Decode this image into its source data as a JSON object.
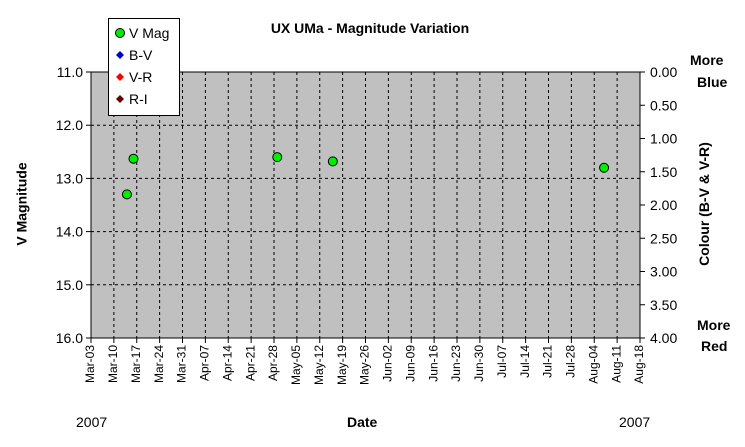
{
  "chart_data": {
    "type": "scatter",
    "title": "UX UMa - Magnitude Variation",
    "xlabel": "Date",
    "ylabel": "V Magnitude",
    "y2label": "Colour (B-V & V-R)",
    "x_start_year_label": "2007",
    "x_end_year_label": "2007",
    "categories": [
      "Mar-03",
      "Mar-10",
      "Mar-17",
      "Mar-24",
      "Mar-31",
      "Apr-07",
      "Apr-14",
      "Apr-21",
      "Apr-28",
      "May-05",
      "May-12",
      "May-19",
      "May-26",
      "Jun-02",
      "Jun-09",
      "Jun-16",
      "Jun-23",
      "Jun-30",
      "Jul-07",
      "Jul-14",
      "Jul-21",
      "Jul-28",
      "Aug-04",
      "Aug-11",
      "Aug-18"
    ],
    "ylim": [
      16.0,
      11.0
    ],
    "y_ticks": [
      "11.0",
      "12.0",
      "13.0",
      "14.0",
      "15.0",
      "16.0"
    ],
    "y2lim": [
      4.0,
      0.0
    ],
    "y2_ticks": [
      "0.00",
      "0.50",
      "1.00",
      "1.50",
      "2.00",
      "2.50",
      "3.00",
      "3.50",
      "4.00"
    ],
    "y2_top_label": [
      "More",
      "Blue"
    ],
    "y2_bottom_label": [
      "More",
      "Red"
    ],
    "grid": true,
    "legend_position": "top-left",
    "series": [
      {
        "name": "V Mag",
        "marker": "circle",
        "color": "#00ee00",
        "points": [
          {
            "x": "2007-03-14",
            "y": 13.3
          },
          {
            "x": "2007-03-16",
            "y": 12.63
          },
          {
            "x": "2007-04-29",
            "y": 12.6
          },
          {
            "x": "2007-05-16",
            "y": 12.68
          },
          {
            "x": "2007-08-07",
            "y": 12.8
          }
        ]
      },
      {
        "name": "B-V",
        "marker": "diamond",
        "color": "#0000cc",
        "points": []
      },
      {
        "name": "V-R",
        "marker": "diamond",
        "color": "#ff0000",
        "points": []
      },
      {
        "name": "R-I",
        "marker": "diamond",
        "color": "#660000",
        "points": []
      }
    ]
  }
}
